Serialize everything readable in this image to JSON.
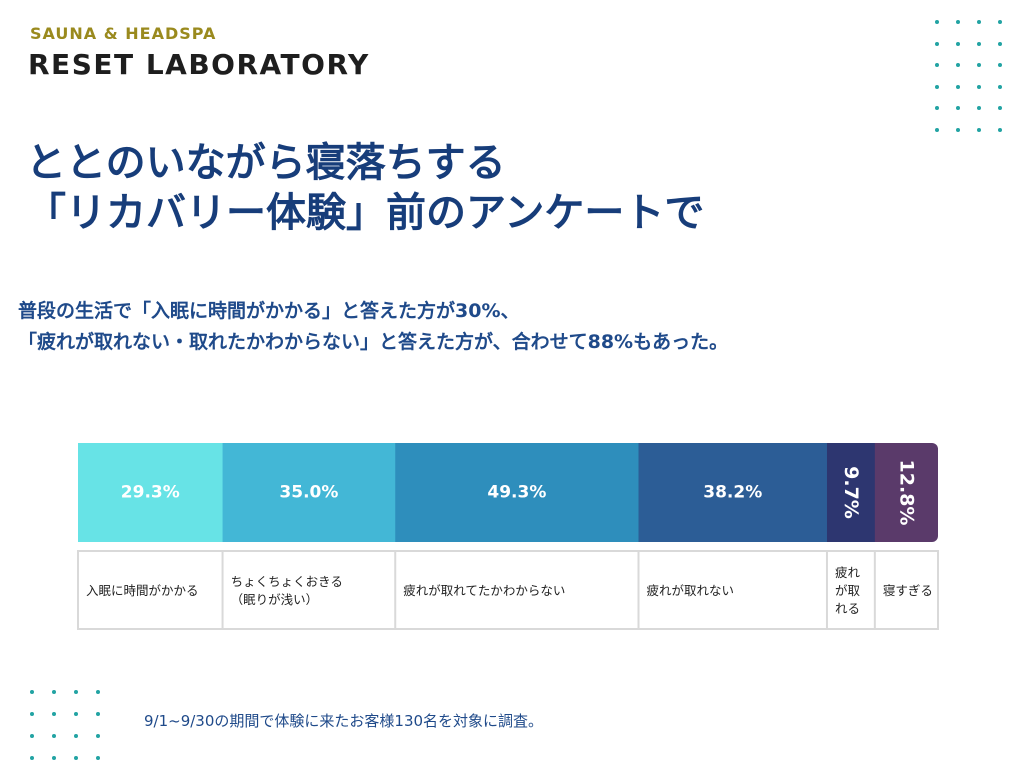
{
  "brand": {
    "subtitle": "SAUNA & HEADSPA",
    "name": "RESET LABORATORY"
  },
  "headline": {
    "line1": "ととのいながら寝落ちする",
    "line2": "「リカバリー体験」前のアンケートで"
  },
  "subtitle": {
    "line1": "普段の生活で「入眠に時間がかかる」と答えた方が30%、",
    "line2": "「疲れが取れない・取れたかわからない」と答えた方が、合わせて88%もあった。"
  },
  "footnote": "9/1~9/30の期間で体験に来たお客様130名を対象に調査。",
  "colors": {
    "dots": "#22a3a3",
    "headline": "#173d7a",
    "subtitle": "#1f4a8a",
    "brand_sub": "#9a8a1e"
  },
  "chart_data": {
    "type": "bar",
    "orientation": "horizontal-stacked",
    "title": "",
    "categories": [
      "入眠に時間がかかる",
      "ちょくちょくおきる（眠りが浅い）",
      "疲れが取れてたかわからない",
      "疲れが取れない",
      "疲れが取れる",
      "寝すぎる"
    ],
    "label_lines": [
      [
        "入眠に時間がかかる"
      ],
      [
        "ちょくちょくおきる",
        "（眠りが浅い）"
      ],
      [
        "疲れが取れてたかわからない"
      ],
      [
        "疲れが取れない"
      ],
      [
        "疲れ",
        "が取",
        "れる"
      ],
      [
        "寝すぎる"
      ]
    ],
    "values": [
      29.3,
      35.0,
      49.3,
      38.2,
      9.7,
      12.8
    ],
    "value_labels": [
      "29.3%",
      "35.0%",
      "49.3%",
      "38.2%",
      "9.7%",
      "12.8%"
    ],
    "rotated_value_label": [
      false,
      false,
      false,
      false,
      true,
      true
    ],
    "colors": [
      "#67e3e6",
      "#43b7d6",
      "#2e8ebc",
      "#2c5d96",
      "#2d3670",
      "#5a3a6a"
    ],
    "label_color": "#ffffff"
  }
}
